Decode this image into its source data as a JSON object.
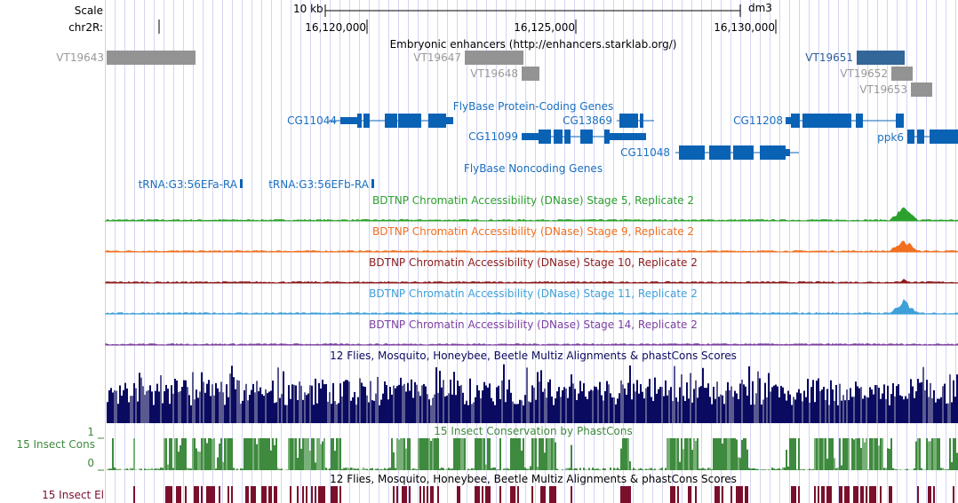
{
  "ruler": {
    "scale_label": "Scale",
    "scale_bar": "10 kb",
    "assembly": "dm3",
    "chrom_label": "chr2R:",
    "positions": [
      "16,120,000",
      "16,125,000",
      "16,130,000"
    ]
  },
  "enhancers": {
    "title": "Embryonic enhancers (http://enhancers.starklab.org/)",
    "items": [
      "VT19643",
      "VT19647",
      "VT19648",
      "VT19651",
      "VT19652",
      "VT19653"
    ]
  },
  "coding": {
    "title": "FlyBase Protein-Coding Genes",
    "genes": [
      "CG11044",
      "CG13869",
      "CG11099",
      "CG11048",
      "CG11208",
      "ppk6"
    ]
  },
  "noncoding": {
    "title": "FlyBase Noncoding Genes",
    "genes": [
      "tRNA:G3:56EFa-RA",
      "tRNA:G3:56EFb-RA"
    ]
  },
  "dnase": [
    {
      "title": "BDTNP Chromatin Accessibility (DNase) Stage 5, Replicate 2",
      "color": "#2ca02c"
    },
    {
      "title": "BDTNP Chromatin Accessibility (DNase) Stage 9, Replicate 2",
      "color": "#f07020"
    },
    {
      "title": "BDTNP Chromatin Accessibility (DNase) Stage 10, Replicate 2",
      "color": "#8b1a1a"
    },
    {
      "title": "BDTNP Chromatin Accessibility (DNase) Stage 11, Replicate 2",
      "color": "#3fa0d8"
    },
    {
      "title": "BDTNP Chromatin Accessibility (DNase) Stage 14, Replicate 2",
      "color": "#7b3fa0"
    }
  ],
  "multiz": {
    "title": "12 Flies, Mosquito, Honeybee, Beetle Multiz Alignments & phastCons Scores",
    "color": "#0a0a60"
  },
  "cons": {
    "title": "15 Insect Conservation by PhastCons",
    "label": "15 Insect Cons",
    "max": "1",
    "min": "0",
    "color": "#3e8a3e"
  },
  "multiz2": {
    "title": "12 Flies, Mosquito, Honeybee, Beetle Multiz Alignments & phastCons Scores"
  },
  "elements": {
    "label": "15 Insect El",
    "color": "#7a0f2c"
  }
}
